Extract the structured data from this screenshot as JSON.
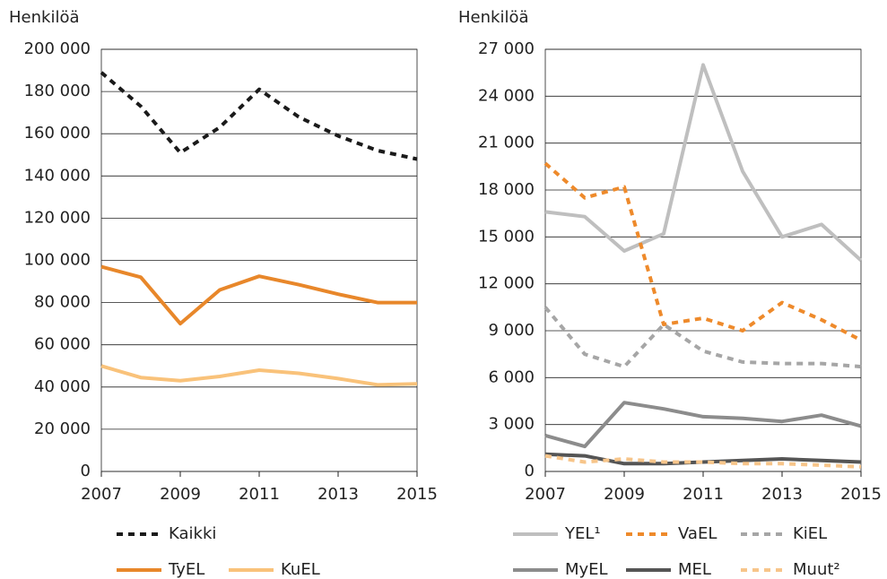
{
  "chart_data": [
    {
      "type": "line",
      "y_label": "Henkilöä",
      "x": [
        2007,
        2008,
        2009,
        2010,
        2011,
        2012,
        2013,
        2014,
        2015
      ],
      "xlim": [
        2007,
        2015
      ],
      "xticks": [
        2007,
        2009,
        2011,
        2013,
        2015
      ],
      "ylim": [
        0,
        200000
      ],
      "yticks": [
        0,
        {
          "value": 20000,
          "label": "20 000"
        },
        {
          "value": 40000,
          "label": "40 000"
        },
        {
          "value": 60000,
          "label": "60 000"
        },
        {
          "value": 80000,
          "label": "80 000"
        },
        {
          "value": 100000,
          "label": "100 000"
        },
        {
          "value": 120000,
          "label": "120 000"
        },
        {
          "value": 140000,
          "label": "140 000"
        },
        {
          "value": 160000,
          "label": "160 000"
        },
        {
          "value": 180000,
          "label": "180 000"
        },
        {
          "value": 200000,
          "label": "200 000"
        }
      ],
      "grid": true,
      "series": [
        {
          "name": "Kaikki",
          "color": "#1a1a1a",
          "dashed": true,
          "values": [
            189000,
            173000,
            151000,
            163000,
            181000,
            168000,
            159000,
            152000,
            148000
          ]
        },
        {
          "name": "TyEL",
          "color": "#e8872a",
          "dashed": false,
          "values": [
            97000,
            92000,
            70000,
            86000,
            92500,
            88500,
            84000,
            80000,
            80000
          ]
        },
        {
          "name": "KuEL",
          "color": "#f9c27a",
          "dashed": false,
          "values": [
            50000,
            44500,
            43000,
            45000,
            48000,
            46500,
            44000,
            41000,
            41500
          ]
        }
      ]
    },
    {
      "type": "line",
      "y_label": "Henkilöä",
      "x": [
        2007,
        2008,
        2009,
        2010,
        2011,
        2012,
        2013,
        2014,
        2015
      ],
      "xlim": [
        2007,
        2015
      ],
      "xticks": [
        2007,
        2009,
        2011,
        2013,
        2015
      ],
      "ylim": [
        0,
        27000
      ],
      "yticks": [
        0,
        {
          "value": 3000,
          "label": "3 000"
        },
        {
          "value": 6000,
          "label": "6 000"
        },
        {
          "value": 9000,
          "label": "9 000"
        },
        {
          "value": 12000,
          "label": "12 000"
        },
        {
          "value": 15000,
          "label": "15 000"
        },
        {
          "value": 18000,
          "label": "18 000"
        },
        {
          "value": 21000,
          "label": "21 000"
        },
        {
          "value": 24000,
          "label": "24 000"
        },
        {
          "value": 27000,
          "label": "27 000"
        }
      ],
      "grid": true,
      "series": [
        {
          "name": "YEL¹",
          "color": "#bfbfbf",
          "dashed": false,
          "values": [
            16600,
            16300,
            14100,
            15200,
            26000,
            19200,
            15000,
            15800,
            13500
          ]
        },
        {
          "name": "VaEL",
          "color": "#ee8a2b",
          "dashed": true,
          "values": [
            19700,
            17500,
            18200,
            9400,
            9800,
            9000,
            10800,
            9700,
            8400
          ]
        },
        {
          "name": "KiEL",
          "color": "#a6a6a6",
          "dashed": true,
          "values": [
            10500,
            7500,
            6700,
            9400,
            7700,
            7000,
            6900,
            6900,
            6700
          ]
        },
        {
          "name": "MyEL",
          "color": "#8c8c8c",
          "dashed": false,
          "values": [
            2300,
            1600,
            4400,
            4000,
            3500,
            3400,
            3200,
            3600,
            2900
          ]
        },
        {
          "name": "MEL",
          "color": "#555555",
          "dashed": false,
          "values": [
            1100,
            1000,
            500,
            500,
            600,
            700,
            800,
            700,
            600
          ]
        },
        {
          "name": "Muut²",
          "color": "#f7c58a",
          "dashed": true,
          "values": [
            1000,
            600,
            800,
            600,
            600,
            500,
            500,
            400,
            300
          ]
        }
      ]
    }
  ]
}
